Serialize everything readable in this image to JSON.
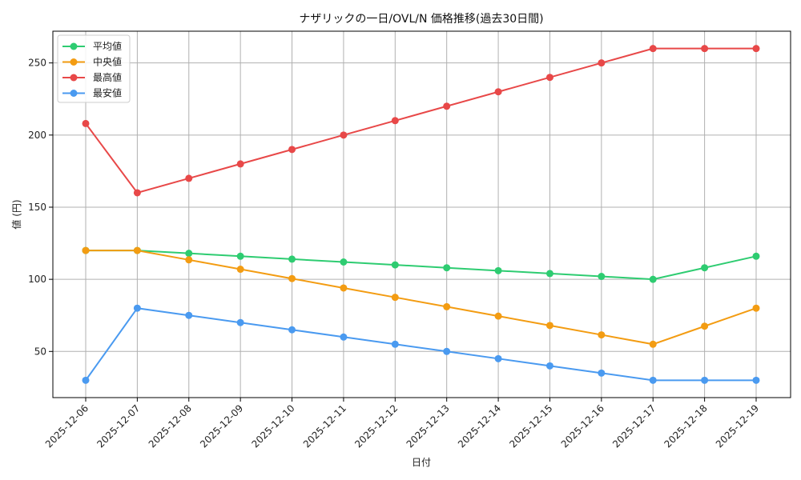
{
  "chart_data": {
    "type": "line",
    "title": "ナザリックの一日/OVL/N 価格推移(過去30日間)",
    "xlabel": "日付",
    "ylabel": "値 (円)",
    "categories": [
      "2025-12-06",
      "2025-12-07",
      "2025-12-08",
      "2025-12-09",
      "2025-12-10",
      "2025-12-11",
      "2025-12-12",
      "2025-12-13",
      "2025-12-14",
      "2025-12-15",
      "2025-12-16",
      "2025-12-17",
      "2025-12-18",
      "2025-12-19"
    ],
    "ylim": [
      18,
      272
    ],
    "yticks": [
      50,
      100,
      150,
      200,
      250
    ],
    "grid": true,
    "legend_position": "top-left",
    "series": [
      {
        "name": "平均値",
        "color": "#2ecc71",
        "values": [
          120,
          120,
          118,
          116,
          114,
          112,
          110,
          108,
          106,
          104,
          102,
          100,
          108,
          116
        ]
      },
      {
        "name": "中央値",
        "color": "#f39c12",
        "values": [
          120,
          120,
          113.5,
          107,
          100.5,
          94,
          87.5,
          81,
          74.5,
          68,
          61.5,
          55,
          67.5,
          80
        ]
      },
      {
        "name": "最高値",
        "color": "#e84848",
        "values": [
          208,
          160,
          170,
          180,
          190,
          200,
          210,
          220,
          230,
          240,
          250,
          260,
          260,
          260
        ]
      },
      {
        "name": "最安値",
        "color": "#4a9af0",
        "values": [
          30,
          80,
          75,
          70,
          65,
          60,
          55,
          50,
          45,
          40,
          35,
          30,
          30,
          30
        ]
      }
    ]
  }
}
